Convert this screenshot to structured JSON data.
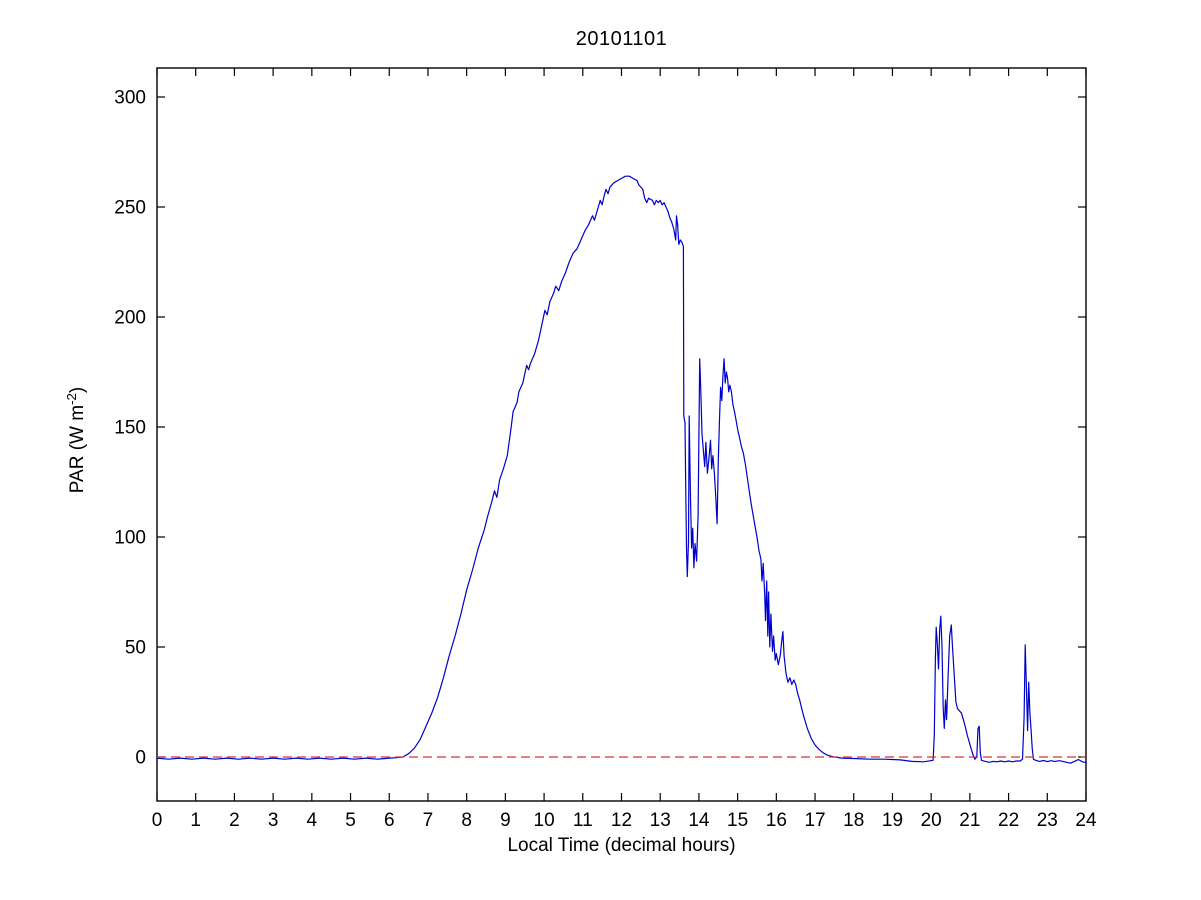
{
  "figure": {
    "title": "20101101",
    "xlabel": "Local Time (decimal hours)",
    "ylabel_prefix": "PAR (W m",
    "ylabel_sup": "-2",
    "ylabel_suffix": ")"
  },
  "chart_data": {
    "type": "line",
    "title": "20101101",
    "xlabel": "Local Time (decimal hours)",
    "ylabel": "PAR (W m^-2)",
    "xlim": [
      0,
      24
    ],
    "ylim": [
      -20,
      313
    ],
    "x_ticks": [
      0,
      1,
      2,
      3,
      4,
      5,
      6,
      7,
      8,
      9,
      10,
      11,
      12,
      13,
      14,
      15,
      16,
      17,
      18,
      19,
      20,
      21,
      22,
      23,
      24
    ],
    "y_ticks": [
      0,
      50,
      100,
      150,
      200,
      250,
      300
    ],
    "grid": false,
    "legend_position": "none",
    "box": true,
    "tick_direction": "in",
    "colors": {
      "par_line": "#0000cc",
      "zero_line": "#dd3232",
      "axis": "#000000",
      "background": "#ffffff"
    },
    "series": [
      {
        "name": "PAR",
        "style": "solid",
        "color": "#0000cc",
        "points": [
          [
            0,
            -0.5
          ],
          [
            0.3,
            -1
          ],
          [
            0.6,
            -0.5
          ],
          [
            0.9,
            -1
          ],
          [
            1.2,
            -0.5
          ],
          [
            1.5,
            -1
          ],
          [
            1.8,
            -0.5
          ],
          [
            2.1,
            -1
          ],
          [
            2.4,
            -0.5
          ],
          [
            2.7,
            -1
          ],
          [
            3,
            -0.5
          ],
          [
            3.3,
            -1
          ],
          [
            3.6,
            -0.5
          ],
          [
            3.9,
            -1
          ],
          [
            4.2,
            -0.5
          ],
          [
            4.5,
            -1
          ],
          [
            4.8,
            -0.5
          ],
          [
            5.1,
            -1
          ],
          [
            5.4,
            -0.5
          ],
          [
            5.7,
            -1
          ],
          [
            6,
            -0.5
          ],
          [
            6.2,
            -0.3
          ],
          [
            6.35,
            0
          ],
          [
            6.5,
            1.5
          ],
          [
            6.65,
            4
          ],
          [
            6.8,
            8
          ],
          [
            6.95,
            14
          ],
          [
            7.1,
            20
          ],
          [
            7.25,
            27
          ],
          [
            7.4,
            36
          ],
          [
            7.55,
            46
          ],
          [
            7.7,
            55
          ],
          [
            7.85,
            65
          ],
          [
            8,
            76
          ],
          [
            8.15,
            85
          ],
          [
            8.3,
            95
          ],
          [
            8.45,
            103
          ],
          [
            8.55,
            110
          ],
          [
            8.65,
            116
          ],
          [
            8.72,
            121
          ],
          [
            8.78,
            118
          ],
          [
            8.85,
            126
          ],
          [
            8.95,
            131
          ],
          [
            9.05,
            137
          ],
          [
            9.15,
            150
          ],
          [
            9.2,
            157
          ],
          [
            9.3,
            161
          ],
          [
            9.35,
            166
          ],
          [
            9.45,
            170
          ],
          [
            9.5,
            174
          ],
          [
            9.55,
            178
          ],
          [
            9.6,
            176
          ],
          [
            9.65,
            179
          ],
          [
            9.75,
            183
          ],
          [
            9.85,
            189
          ],
          [
            9.95,
            197
          ],
          [
            10.02,
            203
          ],
          [
            10.08,
            201
          ],
          [
            10.15,
            207
          ],
          [
            10.25,
            211
          ],
          [
            10.3,
            214
          ],
          [
            10.38,
            212
          ],
          [
            10.45,
            216
          ],
          [
            10.55,
            220
          ],
          [
            10.65,
            225
          ],
          [
            10.75,
            229
          ],
          [
            10.85,
            231
          ],
          [
            10.95,
            235
          ],
          [
            11.05,
            239
          ],
          [
            11.15,
            242
          ],
          [
            11.25,
            246
          ],
          [
            11.3,
            244
          ],
          [
            11.4,
            250
          ],
          [
            11.45,
            253
          ],
          [
            11.5,
            251
          ],
          [
            11.55,
            255
          ],
          [
            11.6,
            258
          ],
          [
            11.65,
            256
          ],
          [
            11.7,
            259
          ],
          [
            11.8,
            261
          ],
          [
            11.9,
            262
          ],
          [
            12,
            263
          ],
          [
            12.1,
            264
          ],
          [
            12.2,
            264
          ],
          [
            12.3,
            263
          ],
          [
            12.4,
            262
          ],
          [
            12.45,
            260
          ],
          [
            12.55,
            258
          ],
          [
            12.6,
            254
          ],
          [
            12.65,
            252
          ],
          [
            12.7,
            254
          ],
          [
            12.8,
            253
          ],
          [
            12.85,
            251
          ],
          [
            12.9,
            253
          ],
          [
            12.95,
            252
          ],
          [
            13,
            253
          ],
          [
            13.05,
            251
          ],
          [
            13.1,
            252
          ],
          [
            13.15,
            250
          ],
          [
            13.2,
            248
          ],
          [
            13.25,
            245
          ],
          [
            13.3,
            243
          ],
          [
            13.35,
            240
          ],
          [
            13.4,
            235
          ],
          [
            13.42,
            246
          ],
          [
            13.45,
            242
          ],
          [
            13.48,
            233
          ],
          [
            13.52,
            235
          ],
          [
            13.56,
            234
          ],
          [
            13.6,
            232
          ],
          [
            13.61,
            155
          ],
          [
            13.64,
            152
          ],
          [
            13.66,
            120
          ],
          [
            13.68,
            95
          ],
          [
            13.7,
            82
          ],
          [
            13.73,
            98
          ],
          [
            13.75,
            155
          ],
          [
            13.78,
            120
          ],
          [
            13.81,
            95
          ],
          [
            13.84,
            104
          ],
          [
            13.87,
            86
          ],
          [
            13.9,
            97
          ],
          [
            13.94,
            89
          ],
          [
            13.98,
            110
          ],
          [
            14.02,
            181
          ],
          [
            14.05,
            165
          ],
          [
            14.08,
            147
          ],
          [
            14.12,
            138
          ],
          [
            14.15,
            132
          ],
          [
            14.18,
            143
          ],
          [
            14.22,
            129
          ],
          [
            14.26,
            136
          ],
          [
            14.3,
            144
          ],
          [
            14.33,
            131
          ],
          [
            14.36,
            137
          ],
          [
            14.4,
            129
          ],
          [
            14.44,
            117
          ],
          [
            14.47,
            106
          ],
          [
            14.5,
            135
          ],
          [
            14.53,
            152
          ],
          [
            14.56,
            168
          ],
          [
            14.59,
            162
          ],
          [
            14.62,
            173
          ],
          [
            14.65,
            181
          ],
          [
            14.68,
            170
          ],
          [
            14.71,
            175
          ],
          [
            14.74,
            172
          ],
          [
            14.77,
            166
          ],
          [
            14.8,
            169
          ],
          [
            14.84,
            166
          ],
          [
            14.88,
            160
          ],
          [
            14.92,
            157
          ],
          [
            14.96,
            153
          ],
          [
            15,
            149
          ],
          [
            15.05,
            145
          ],
          [
            15.1,
            141
          ],
          [
            15.15,
            138
          ],
          [
            15.2,
            133
          ],
          [
            15.25,
            127
          ],
          [
            15.3,
            121
          ],
          [
            15.35,
            115
          ],
          [
            15.4,
            110
          ],
          [
            15.45,
            105
          ],
          [
            15.5,
            100
          ],
          [
            15.55,
            94
          ],
          [
            15.6,
            90
          ],
          [
            15.63,
            80
          ],
          [
            15.66,
            88
          ],
          [
            15.7,
            74
          ],
          [
            15.72,
            62
          ],
          [
            15.75,
            80
          ],
          [
            15.78,
            55
          ],
          [
            15.8,
            75
          ],
          [
            15.83,
            50
          ],
          [
            15.86,
            65
          ],
          [
            15.9,
            48
          ],
          [
            15.93,
            55
          ],
          [
            15.97,
            44
          ],
          [
            16,
            47
          ],
          [
            16.05,
            42
          ],
          [
            16.1,
            46
          ],
          [
            16.14,
            53
          ],
          [
            16.17,
            57
          ],
          [
            16.2,
            46
          ],
          [
            16.25,
            38
          ],
          [
            16.3,
            34
          ],
          [
            16.35,
            36
          ],
          [
            16.4,
            33
          ],
          [
            16.45,
            35
          ],
          [
            16.5,
            33
          ],
          [
            16.55,
            29
          ],
          [
            16.6,
            26
          ],
          [
            16.7,
            19
          ],
          [
            16.8,
            13
          ],
          [
            16.9,
            8.5
          ],
          [
            17,
            5.5
          ],
          [
            17.1,
            3.5
          ],
          [
            17.2,
            2
          ],
          [
            17.3,
            1
          ],
          [
            17.4,
            0.4
          ],
          [
            17.5,
            0
          ],
          [
            17.7,
            -0.5
          ],
          [
            18,
            -0.7
          ],
          [
            18.4,
            -1
          ],
          [
            18.8,
            -1
          ],
          [
            19.2,
            -1.3
          ],
          [
            19.5,
            -2
          ],
          [
            19.8,
            -2.2
          ],
          [
            20.05,
            -1.5
          ],
          [
            20.08,
            10
          ],
          [
            20.11,
            45
          ],
          [
            20.13,
            59
          ],
          [
            20.16,
            51
          ],
          [
            20.19,
            40
          ],
          [
            20.22,
            58
          ],
          [
            20.25,
            64
          ],
          [
            20.28,
            50
          ],
          [
            20.31,
            22
          ],
          [
            20.34,
            13
          ],
          [
            20.37,
            26
          ],
          [
            20.4,
            17
          ],
          [
            20.44,
            38
          ],
          [
            20.48,
            55
          ],
          [
            20.52,
            60
          ],
          [
            20.55,
            50
          ],
          [
            20.58,
            42
          ],
          [
            20.61,
            33
          ],
          [
            20.64,
            25
          ],
          [
            20.68,
            22
          ],
          [
            20.73,
            21
          ],
          [
            20.78,
            20
          ],
          [
            20.83,
            17
          ],
          [
            20.88,
            14
          ],
          [
            20.93,
            10
          ],
          [
            20.98,
            7
          ],
          [
            21.03,
            4
          ],
          [
            21.08,
            1
          ],
          [
            21.13,
            -1
          ],
          [
            21.18,
            0
          ],
          [
            21.21,
            13
          ],
          [
            21.24,
            14
          ],
          [
            21.27,
            2
          ],
          [
            21.3,
            -1.5
          ],
          [
            21.4,
            -2
          ],
          [
            21.5,
            -2.4
          ],
          [
            21.6,
            -2
          ],
          [
            21.7,
            -2.2
          ],
          [
            21.8,
            -1.8
          ],
          [
            21.9,
            -2.2
          ],
          [
            22,
            -1.8
          ],
          [
            22.1,
            -2.2
          ],
          [
            22.2,
            -1.8
          ],
          [
            22.3,
            -1.8
          ],
          [
            22.36,
            -1
          ],
          [
            22.4,
            18
          ],
          [
            22.43,
            51
          ],
          [
            22.46,
            32
          ],
          [
            22.49,
            12
          ],
          [
            22.52,
            34
          ],
          [
            22.55,
            20
          ],
          [
            22.58,
            13
          ],
          [
            22.61,
            4
          ],
          [
            22.64,
            -1
          ],
          [
            22.7,
            -1.5
          ],
          [
            22.8,
            -2
          ],
          [
            22.9,
            -1.6
          ],
          [
            23,
            -2.1
          ],
          [
            23.1,
            -1.7
          ],
          [
            23.2,
            -2.1
          ],
          [
            23.3,
            -1.7
          ],
          [
            23.4,
            -2
          ],
          [
            23.5,
            -2.4
          ],
          [
            23.6,
            -2.8
          ],
          [
            23.7,
            -2
          ],
          [
            23.8,
            -1.2
          ],
          [
            23.85,
            -1.6
          ],
          [
            23.9,
            -2.2
          ],
          [
            24,
            -2.5
          ]
        ]
      },
      {
        "name": "zero reference line",
        "style": "dashed",
        "color": "#dd3232",
        "points": [
          [
            0,
            0
          ],
          [
            24,
            0
          ]
        ]
      }
    ]
  }
}
